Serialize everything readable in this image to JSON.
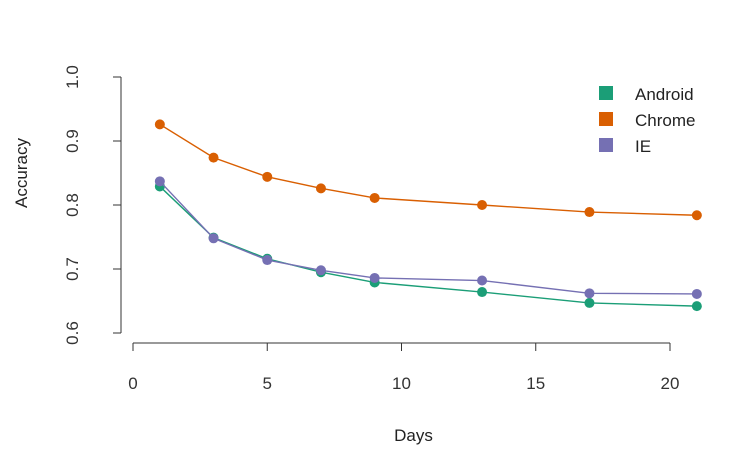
{
  "chart_data": {
    "type": "line",
    "title": "",
    "xlabel": "Days",
    "ylabel": "Accuracy",
    "xlim": [
      0,
      21
    ],
    "ylim": [
      0.6,
      1.0
    ],
    "xticks": [
      0,
      5,
      10,
      15,
      20
    ],
    "yticks": [
      0.6,
      0.7,
      0.8,
      0.9,
      1.0
    ],
    "xtick_labels": [
      "0",
      "5",
      "10",
      "15",
      "20"
    ],
    "ytick_labels": [
      "0.6",
      "0.7",
      "0.8",
      "0.9",
      "1.0"
    ],
    "grid": false,
    "legend_position": "top-right",
    "x": [
      1,
      3,
      5,
      7,
      9,
      13,
      17,
      21
    ],
    "series": [
      {
        "name": "Android",
        "color": "#1b9e77",
        "values": [
          0.829,
          0.749,
          0.716,
          0.695,
          0.679,
          0.664,
          0.647,
          0.642
        ]
      },
      {
        "name": "Chrome",
        "color": "#d95f02",
        "values": [
          0.926,
          0.874,
          0.844,
          0.826,
          0.811,
          0.8,
          0.789,
          0.784
        ]
      },
      {
        "name": "IE",
        "color": "#7570b3",
        "values": [
          0.837,
          0.748,
          0.714,
          0.698,
          0.686,
          0.682,
          0.662,
          0.661
        ]
      }
    ]
  }
}
